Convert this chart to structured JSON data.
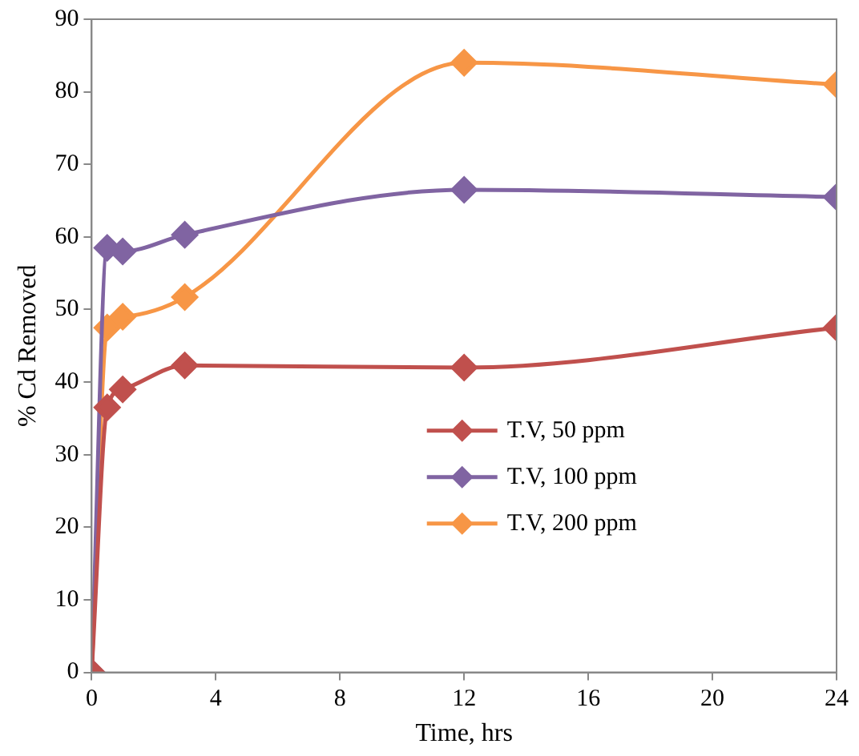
{
  "chart_data": {
    "type": "line",
    "xlabel": "Time, hrs",
    "ylabel": "% Cd Removed",
    "x": [
      0,
      0.5,
      1,
      3,
      12,
      24
    ],
    "series": [
      {
        "name": "T.V, 50 ppm",
        "color": "#c0504d",
        "values": [
          0,
          36.5,
          39,
          42.3,
          42,
          47.5
        ]
      },
      {
        "name": "T.V, 100 ppm",
        "color": "#8064a2",
        "values": [
          0,
          58.5,
          58,
          60.3,
          66.5,
          65.5
        ]
      },
      {
        "name": "T.V, 200 ppm",
        "color": "#f79646",
        "values": [
          0,
          47.5,
          49,
          51.7,
          84,
          81
        ]
      }
    ],
    "xlim": [
      0,
      24
    ],
    "xticks": [
      0,
      4,
      8,
      12,
      16,
      20,
      24
    ],
    "ylim": [
      0,
      90
    ],
    "yticks": [
      0,
      10,
      20,
      30,
      40,
      50,
      60,
      70,
      80,
      90
    ],
    "grid": false,
    "legend": "right",
    "marker": "diamond",
    "line_style": "solid"
  }
}
